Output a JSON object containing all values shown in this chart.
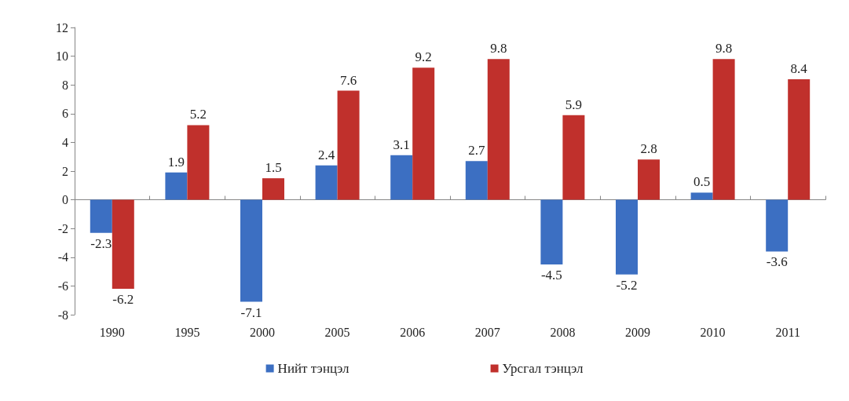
{
  "chart_data": {
    "type": "bar",
    "categories": [
      "1990",
      "1995",
      "2000",
      "2005",
      "2006",
      "2007",
      "2008",
      "2009",
      "2010",
      "2011"
    ],
    "series": [
      {
        "name": "Нийт тэнцэл",
        "color": "#3c6fc2",
        "values": [
          -2.3,
          1.9,
          -7.1,
          2.4,
          3.1,
          2.7,
          -4.5,
          -5.2,
          0.5,
          -3.6
        ]
      },
      {
        "name": "Урсгал тэнцэл",
        "color": "#c0302c",
        "values": [
          -6.2,
          5.2,
          1.5,
          7.6,
          9.2,
          9.8,
          5.9,
          2.8,
          9.8,
          8.4
        ]
      }
    ],
    "ylim": [
      -8,
      12
    ],
    "yticks": [
      -8,
      -6,
      -4,
      -2,
      0,
      2,
      4,
      6,
      8,
      10,
      12
    ],
    "legend": "bottom",
    "data_labels": true
  }
}
